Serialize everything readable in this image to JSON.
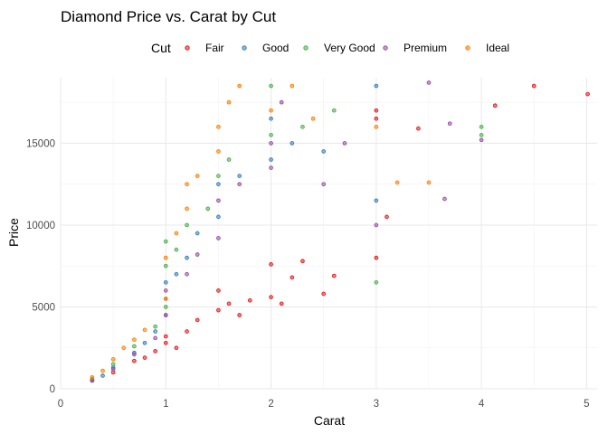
{
  "chart_data": {
    "type": "scatter",
    "title": "Diamond Price vs. Carat by Cut",
    "xlabel": "Carat",
    "ylabel": "Price",
    "xlim": [
      0,
      5.1
    ],
    "ylim": [
      0,
      19000
    ],
    "x_ticks": [
      0,
      1,
      2,
      3,
      4,
      5
    ],
    "y_ticks": [
      0,
      5000,
      10000,
      15000
    ],
    "grid": true,
    "legend": {
      "title": "Cut",
      "position": "top"
    },
    "series": [
      {
        "name": "Fair",
        "color": "#E41A1C",
        "points": [
          [
            0.3,
            550
          ],
          [
            0.5,
            1000
          ],
          [
            0.7,
            1700
          ],
          [
            0.8,
            1900
          ],
          [
            0.9,
            2300
          ],
          [
            1.0,
            2800
          ],
          [
            1.0,
            3200
          ],
          [
            1.1,
            2500
          ],
          [
            1.2,
            3500
          ],
          [
            1.3,
            4200
          ],
          [
            1.5,
            4800
          ],
          [
            1.5,
            6000
          ],
          [
            1.6,
            5200
          ],
          [
            1.7,
            4500
          ],
          [
            1.8,
            5400
          ],
          [
            2.0,
            5600
          ],
          [
            2.0,
            7600
          ],
          [
            2.1,
            5200
          ],
          [
            2.2,
            6800
          ],
          [
            2.3,
            7800
          ],
          [
            2.5,
            5800
          ],
          [
            2.6,
            6900
          ],
          [
            3.0,
            8000
          ],
          [
            3.0,
            16500
          ],
          [
            3.0,
            17000
          ],
          [
            3.1,
            10500
          ],
          [
            3.4,
            15900
          ],
          [
            4.13,
            17300
          ],
          [
            4.5,
            18500
          ],
          [
            5.01,
            18000
          ]
        ]
      },
      {
        "name": "Good",
        "color": "#377EB8",
        "points": [
          [
            0.3,
            500
          ],
          [
            0.4,
            800
          ],
          [
            0.5,
            1300
          ],
          [
            0.7,
            2200
          ],
          [
            0.8,
            2800
          ],
          [
            0.9,
            3500
          ],
          [
            1.0,
            4500
          ],
          [
            1.0,
            5500
          ],
          [
            1.0,
            6500
          ],
          [
            1.1,
            7000
          ],
          [
            1.2,
            8000
          ],
          [
            1.3,
            9500
          ],
          [
            1.5,
            10500
          ],
          [
            1.5,
            12500
          ],
          [
            1.7,
            13000
          ],
          [
            2.0,
            14000
          ],
          [
            2.0,
            16500
          ],
          [
            2.2,
            15000
          ],
          [
            2.5,
            14500
          ],
          [
            3.0,
            18500
          ],
          [
            3.0,
            11500
          ]
        ]
      },
      {
        "name": "Very Good",
        "color": "#4DAF4A",
        "points": [
          [
            0.3,
            600
          ],
          [
            0.5,
            1500
          ],
          [
            0.7,
            2600
          ],
          [
            0.9,
            3800
          ],
          [
            1.0,
            5000
          ],
          [
            1.0,
            7500
          ],
          [
            1.0,
            9000
          ],
          [
            1.1,
            8500
          ],
          [
            1.2,
            10000
          ],
          [
            1.4,
            11000
          ],
          [
            1.5,
            13000
          ],
          [
            1.6,
            14000
          ],
          [
            2.0,
            18500
          ],
          [
            2.0,
            15500
          ],
          [
            2.3,
            16000
          ],
          [
            2.6,
            17000
          ],
          [
            3.0,
            6500
          ],
          [
            4.0,
            16000
          ],
          [
            4.0,
            15500
          ]
        ]
      },
      {
        "name": "Premium",
        "color": "#984EA3",
        "points": [
          [
            0.3,
            500
          ],
          [
            0.5,
            1200
          ],
          [
            0.7,
            2100
          ],
          [
            0.9,
            3100
          ],
          [
            1.0,
            4500
          ],
          [
            1.0,
            6000
          ],
          [
            1.2,
            7000
          ],
          [
            1.3,
            8200
          ],
          [
            1.5,
            9200
          ],
          [
            1.5,
            11500
          ],
          [
            1.7,
            12500
          ],
          [
            2.0,
            13500
          ],
          [
            2.0,
            15000
          ],
          [
            2.1,
            17500
          ],
          [
            2.5,
            12500
          ],
          [
            2.7,
            15000
          ],
          [
            3.0,
            10000
          ],
          [
            3.5,
            18700
          ],
          [
            3.7,
            16200
          ],
          [
            3.65,
            11600
          ],
          [
            4.0,
            15200
          ]
        ]
      },
      {
        "name": "Ideal",
        "color": "#FF7F00",
        "points": [
          [
            0.3,
            700
          ],
          [
            0.4,
            1100
          ],
          [
            0.5,
            1800
          ],
          [
            0.6,
            2500
          ],
          [
            0.7,
            3000
          ],
          [
            0.8,
            3600
          ],
          [
            1.0,
            5500
          ],
          [
            1.0,
            8000
          ],
          [
            1.1,
            9500
          ],
          [
            1.2,
            11000
          ],
          [
            1.2,
            12500
          ],
          [
            1.3,
            13000
          ],
          [
            1.5,
            14500
          ],
          [
            1.5,
            16000
          ],
          [
            1.6,
            17500
          ],
          [
            1.7,
            18500
          ],
          [
            2.0,
            17000
          ],
          [
            2.2,
            18500
          ],
          [
            2.4,
            16500
          ],
          [
            3.2,
            12600
          ],
          [
            3.5,
            12600
          ],
          [
            3.0,
            16000
          ]
        ]
      }
    ]
  }
}
